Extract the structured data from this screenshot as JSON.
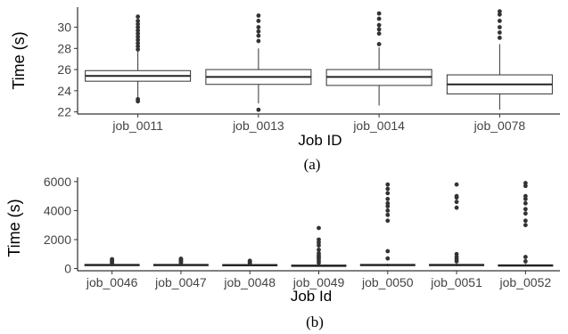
{
  "chart_data": [
    {
      "type": "box",
      "caption": "(a)",
      "xlabel": "Job ID",
      "ylabel": "Time (s)",
      "ylim": [
        21.8,
        31.9
      ],
      "yticks": [
        22,
        24,
        26,
        28,
        30
      ],
      "grid": false,
      "boxes": [
        {
          "category": "job_0011",
          "whisker_low": 23.4,
          "q1": 24.9,
          "median": 25.4,
          "q3": 25.9,
          "whisker_high": 27.7,
          "outliers": [
            23.0,
            23.2,
            27.9,
            28.2,
            28.5,
            28.8,
            29.1,
            29.4,
            29.7,
            30.0,
            30.3,
            30.6,
            31.0
          ]
        },
        {
          "category": "job_0013",
          "whisker_low": 22.8,
          "q1": 24.6,
          "median": 25.3,
          "q3": 26.0,
          "whisker_high": 28.0,
          "outliers": [
            22.2,
            28.7,
            29.2,
            29.6,
            30.0,
            30.6,
            31.1
          ]
        },
        {
          "category": "job_0014",
          "whisker_low": 22.6,
          "q1": 24.5,
          "median": 25.3,
          "q3": 26.0,
          "whisker_high": 28.1,
          "outliers": [
            28.4,
            29.4,
            29.8,
            30.2,
            30.8,
            31.3
          ]
        },
        {
          "category": "job_0078",
          "whisker_low": 22.2,
          "q1": 23.7,
          "median": 24.6,
          "q3": 25.5,
          "whisker_high": 28.4,
          "outliers": [
            29.0,
            29.5,
            30.0,
            30.6,
            31.2,
            31.5
          ]
        }
      ]
    },
    {
      "type": "box",
      "caption": "(b)",
      "xlabel": "Job Id",
      "ylabel": "Time (s)",
      "ylim": [
        -150,
        6300
      ],
      "yticks": [
        0,
        2000,
        4000,
        6000
      ],
      "grid": false,
      "boxes": [
        {
          "category": "job_0046",
          "whisker_low": 160,
          "q1": 220,
          "median": 250,
          "q3": 290,
          "whisker_high": 330,
          "outliers": [
            380,
            450,
            520,
            600,
            650
          ]
        },
        {
          "category": "job_0047",
          "whisker_low": 160,
          "q1": 220,
          "median": 250,
          "q3": 290,
          "whisker_high": 330,
          "outliers": [
            380,
            450,
            520,
            580,
            630,
            680
          ]
        },
        {
          "category": "job_0048",
          "whisker_low": 160,
          "q1": 220,
          "median": 250,
          "q3": 280,
          "whisker_high": 330,
          "outliers": [
            380,
            430,
            480,
            540
          ]
        },
        {
          "category": "job_0049",
          "whisker_low": 120,
          "q1": 170,
          "median": 200,
          "q3": 240,
          "whisker_high": 300,
          "outliers": [
            400,
            550,
            700,
            800,
            900,
            1050,
            1300,
            1600,
            1800,
            2000,
            2800
          ]
        },
        {
          "category": "job_0050",
          "whisker_low": 160,
          "q1": 210,
          "median": 250,
          "q3": 290,
          "whisker_high": 340,
          "outliers": [
            700,
            1200,
            3300,
            3700,
            4000,
            4300,
            4500,
            4800,
            5200,
            5500,
            5800
          ]
        },
        {
          "category": "job_0051",
          "whisker_low": 160,
          "q1": 210,
          "median": 250,
          "q3": 290,
          "whisker_high": 340,
          "outliers": [
            500,
            650,
            800,
            1000,
            4200,
            4600,
            4900,
            5000,
            5800
          ]
        },
        {
          "category": "job_0052",
          "whisker_low": 140,
          "q1": 190,
          "median": 220,
          "q3": 260,
          "whisker_high": 330,
          "outliers": [
            500,
            800,
            3000,
            3300,
            3800,
            4100,
            4500,
            4800,
            5000,
            5700,
            5900
          ]
        }
      ]
    }
  ]
}
